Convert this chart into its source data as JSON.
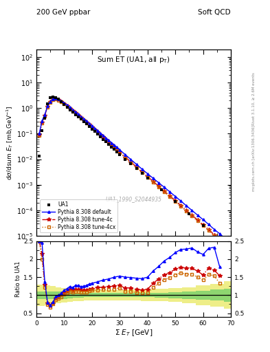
{
  "title_top": "200 GeV ppbar",
  "title_right": "Soft QCD",
  "plot_title": "Sum ET (UA1, all p_{T})",
  "xlabel": "Σ E_{T} [GeV]",
  "ylabel_main": "dσ/dsum E_{T} [mb,GeV⁻¹]",
  "ylabel_ratio": "Ratio to UA1",
  "watermark": "UA1_1990_S2044935",
  "right_label1": "Rivet 3.1.10, ≥ 2.6M events",
  "right_label2": "mcplots.cern.ch [arXiv:1306.3436]",
  "ua1_x": [
    1,
    2,
    3,
    4,
    5,
    6,
    7,
    8,
    9,
    10,
    11,
    12,
    13,
    14,
    15,
    16,
    17,
    18,
    19,
    20,
    21,
    22,
    23,
    24,
    25,
    26,
    27,
    28,
    29,
    30,
    32,
    34,
    36,
    38,
    40,
    45,
    50,
    55,
    60,
    65,
    70
  ],
  "ua1_y": [
    0.013,
    0.13,
    0.4,
    1.5,
    2.5,
    2.8,
    2.5,
    2.2,
    1.8,
    1.4,
    1.1,
    0.85,
    0.7,
    0.55,
    0.45,
    0.37,
    0.3,
    0.24,
    0.19,
    0.15,
    0.12,
    0.095,
    0.075,
    0.06,
    0.048,
    0.038,
    0.03,
    0.024,
    0.019,
    0.015,
    0.01,
    0.0065,
    0.0043,
    0.0028,
    0.0018,
    0.00065,
    0.00022,
    7.5e-05,
    2.5e-05,
    6e-06,
    1.5e-06
  ],
  "pythia_default_x": [
    1,
    2,
    3,
    4,
    5,
    6,
    7,
    8,
    9,
    10,
    11,
    12,
    13,
    14,
    15,
    16,
    17,
    18,
    19,
    20,
    21,
    22,
    23,
    24,
    25,
    26,
    27,
    28,
    29,
    30,
    32,
    34,
    36,
    38,
    40,
    42,
    44,
    46,
    48,
    50,
    52,
    54,
    56,
    58,
    60,
    62,
    64,
    66,
    68,
    70
  ],
  "pythia_default_y": [
    0.1,
    0.32,
    0.55,
    1.2,
    1.8,
    2.3,
    2.4,
    2.2,
    1.9,
    1.6,
    1.3,
    1.05,
    0.85,
    0.7,
    0.57,
    0.46,
    0.375,
    0.305,
    0.248,
    0.2,
    0.162,
    0.13,
    0.105,
    0.085,
    0.068,
    0.055,
    0.044,
    0.036,
    0.029,
    0.023,
    0.015,
    0.0097,
    0.0063,
    0.0041,
    0.0027,
    0.0018,
    0.0012,
    0.0008,
    0.00053,
    0.00035,
    0.00023,
    0.00015,
    9.9e-05,
    6.5e-05,
    4.3e-05,
    2.8e-05,
    1.8e-05,
    1.2e-05,
    7.8e-06,
    5.1e-06
  ],
  "pythia_4c_x": [
    1,
    2,
    3,
    4,
    5,
    6,
    7,
    8,
    9,
    10,
    11,
    12,
    13,
    14,
    15,
    16,
    17,
    18,
    19,
    20,
    21,
    22,
    23,
    24,
    25,
    26,
    27,
    28,
    29,
    30,
    32,
    34,
    36,
    38,
    40,
    42,
    44,
    46,
    48,
    50,
    52,
    54,
    56,
    58,
    60,
    62,
    64,
    66,
    68,
    70
  ],
  "pythia_4c_y": [
    0.09,
    0.28,
    0.52,
    1.15,
    1.75,
    2.2,
    2.3,
    2.1,
    1.8,
    1.5,
    1.22,
    0.98,
    0.79,
    0.64,
    0.52,
    0.42,
    0.34,
    0.275,
    0.222,
    0.178,
    0.143,
    0.115,
    0.092,
    0.073,
    0.059,
    0.047,
    0.038,
    0.03,
    0.024,
    0.019,
    0.012,
    0.0078,
    0.005,
    0.0032,
    0.0021,
    0.00136,
    0.00088,
    0.00057,
    0.00037,
    0.00024,
    0.000155,
    0.0001,
    6.5e-05,
    4.2e-05,
    2.7e-05,
    1.8e-05,
    1.1e-05,
    7.3e-06,
    4.7e-06,
    3e-06
  ],
  "pythia_4cx_x": [
    1,
    2,
    3,
    4,
    5,
    6,
    7,
    8,
    9,
    10,
    11,
    12,
    13,
    14,
    15,
    16,
    17,
    18,
    19,
    20,
    21,
    22,
    23,
    24,
    25,
    26,
    27,
    28,
    29,
    30,
    32,
    34,
    36,
    38,
    40,
    42,
    44,
    46,
    48,
    50,
    52,
    54,
    56,
    58,
    60,
    62,
    64,
    66,
    68,
    70
  ],
  "pythia_4cx_y": [
    0.085,
    0.26,
    0.49,
    1.1,
    1.68,
    2.1,
    2.2,
    2.0,
    1.72,
    1.44,
    1.17,
    0.94,
    0.76,
    0.61,
    0.5,
    0.4,
    0.325,
    0.262,
    0.212,
    0.17,
    0.136,
    0.109,
    0.087,
    0.069,
    0.056,
    0.044,
    0.036,
    0.028,
    0.022,
    0.018,
    0.011,
    0.0072,
    0.0046,
    0.003,
    0.0019,
    0.00124,
    0.0008,
    0.00052,
    0.00034,
    0.00022,
    0.000142,
    9.2e-05,
    5.9e-05,
    3.8e-05,
    2.5e-05,
    1.6e-05,
    1e-05,
    6.7e-06,
    4.3e-06,
    2.8e-06
  ],
  "ratio_default_x": [
    1,
    2,
    3,
    4,
    5,
    6,
    7,
    8,
    9,
    10,
    11,
    12,
    13,
    14,
    15,
    16,
    17,
    18,
    19,
    20,
    22,
    24,
    26,
    28,
    30,
    32,
    34,
    36,
    38,
    40,
    42,
    44,
    46,
    48,
    50,
    52,
    54,
    56,
    58,
    60,
    62,
    64,
    66
  ],
  "ratio_default_y": [
    7.7,
    2.46,
    1.375,
    0.8,
    0.72,
    0.82,
    0.96,
    1.0,
    1.056,
    1.14,
    1.18,
    1.24,
    1.21,
    1.27,
    1.27,
    1.24,
    1.25,
    1.27,
    1.31,
    1.33,
    1.37,
    1.42,
    1.45,
    1.5,
    1.53,
    1.5,
    1.49,
    1.47,
    1.46,
    1.5,
    1.67,
    1.8,
    1.95,
    2.05,
    2.18,
    2.27,
    2.28,
    2.31,
    2.2,
    2.13,
    2.3,
    2.33,
    1.78
  ],
  "ratio_4c_x": [
    1,
    2,
    3,
    4,
    5,
    6,
    7,
    8,
    9,
    10,
    11,
    12,
    13,
    14,
    15,
    16,
    17,
    18,
    19,
    20,
    22,
    24,
    26,
    28,
    30,
    32,
    34,
    36,
    38,
    40,
    42,
    44,
    46,
    48,
    50,
    52,
    54,
    56,
    58,
    60,
    62,
    64,
    66
  ],
  "ratio_4c_y": [
    6.9,
    2.15,
    1.3,
    0.77,
    0.7,
    0.786,
    0.92,
    0.955,
    1.0,
    1.07,
    1.11,
    1.153,
    1.13,
    1.164,
    1.156,
    1.135,
    1.133,
    1.146,
    1.168,
    1.187,
    1.211,
    1.217,
    1.237,
    1.25,
    1.267,
    1.2,
    1.2,
    1.163,
    1.143,
    1.167,
    1.327,
    1.453,
    1.567,
    1.617,
    1.733,
    1.767,
    1.75,
    1.75,
    1.667,
    1.563,
    1.75,
    1.7,
    1.533
  ],
  "ratio_4cx_x": [
    1,
    2,
    3,
    4,
    5,
    6,
    7,
    8,
    9,
    10,
    11,
    12,
    13,
    14,
    15,
    16,
    17,
    18,
    19,
    20,
    22,
    24,
    26,
    28,
    30,
    32,
    34,
    36,
    38,
    40,
    42,
    44,
    46,
    48,
    50,
    52,
    54,
    56,
    58,
    60,
    62,
    64,
    66
  ],
  "ratio_4cx_y": [
    6.54,
    2.0,
    1.225,
    0.733,
    0.672,
    0.75,
    0.88,
    0.909,
    0.956,
    1.029,
    1.064,
    1.106,
    1.086,
    1.109,
    1.111,
    1.081,
    1.083,
    1.092,
    1.116,
    1.133,
    1.147,
    1.15,
    1.158,
    1.167,
    1.2,
    1.1,
    1.108,
    1.07,
    1.071,
    1.056,
    1.213,
    1.333,
    1.433,
    1.483,
    1.567,
    1.617,
    1.583,
    1.583,
    1.5,
    1.417,
    1.583,
    1.533,
    1.333
  ],
  "green_band_x": [
    0,
    2,
    4,
    6,
    8,
    10,
    12,
    14,
    16,
    18,
    20,
    25,
    30,
    35,
    40,
    45,
    50,
    55,
    60,
    65,
    70
  ],
  "green_band_lo": [
    0.9,
    0.9,
    0.9,
    0.9,
    0.9,
    0.9,
    0.92,
    0.93,
    0.93,
    0.94,
    0.94,
    0.94,
    0.94,
    0.94,
    0.94,
    0.93,
    0.92,
    0.9,
    0.88,
    0.85,
    0.82
  ],
  "green_band_hi": [
    1.1,
    1.1,
    1.1,
    1.1,
    1.1,
    1.1,
    1.08,
    1.07,
    1.07,
    1.06,
    1.06,
    1.06,
    1.06,
    1.06,
    1.06,
    1.07,
    1.08,
    1.1,
    1.12,
    1.15,
    1.18
  ],
  "yellow_band_x": [
    0,
    2,
    4,
    6,
    8,
    10,
    12,
    14,
    16,
    18,
    20,
    25,
    30,
    35,
    40,
    45,
    50,
    55,
    60,
    65,
    70
  ],
  "yellow_band_lo": [
    0.7,
    0.7,
    0.72,
    0.75,
    0.78,
    0.8,
    0.82,
    0.83,
    0.84,
    0.85,
    0.85,
    0.86,
    0.86,
    0.85,
    0.84,
    0.83,
    0.81,
    0.78,
    0.73,
    0.68,
    0.62
  ],
  "yellow_band_hi": [
    1.3,
    1.3,
    1.28,
    1.25,
    1.22,
    1.2,
    1.18,
    1.17,
    1.16,
    1.15,
    1.15,
    1.14,
    1.14,
    1.15,
    1.16,
    1.17,
    1.19,
    1.22,
    1.27,
    1.32,
    1.38
  ],
  "xlim": [
    0,
    70
  ],
  "ylim_main": [
    1e-05,
    200
  ],
  "ylim_ratio": [
    0.4,
    2.5
  ],
  "yticks_ratio": [
    0.5,
    1.0,
    1.5,
    2.0,
    2.5
  ],
  "ytick_labels_ratio": [
    "0.5",
    "1",
    "1.5",
    "2",
    "2.5"
  ],
  "color_ua1": "#000000",
  "color_default": "#0000ff",
  "color_4c": "#cc0000",
  "color_4cx": "#cc6600",
  "color_green": "#66cc66",
  "color_yellow": "#eeee88",
  "bg_color": "#ffffff"
}
